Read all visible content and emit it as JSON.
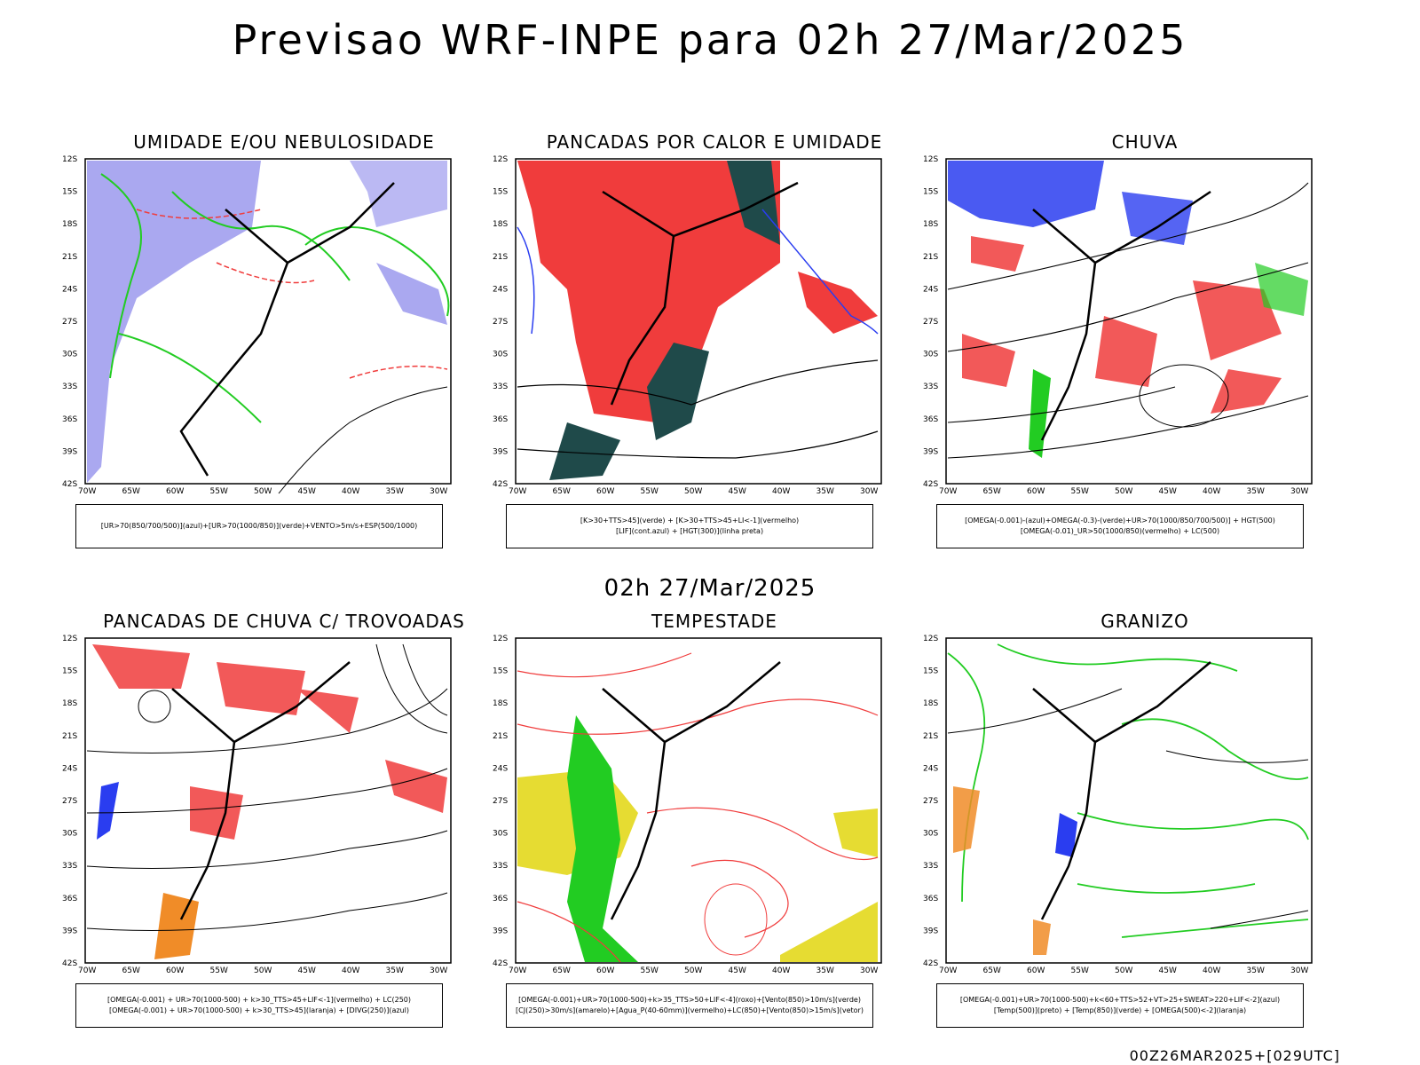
{
  "header": {
    "title": "Previsao WRF-INPE  para 02h 27/Mar/2025"
  },
  "middle": {
    "subtitle": "02h 27/Mar/2025"
  },
  "footer": {
    "run": "00Z26MAR2025+[029UTC]"
  },
  "axes": {
    "lat": [
      "12S",
      "15S",
      "18S",
      "21S",
      "24S",
      "27S",
      "30S",
      "33S",
      "36S",
      "39S",
      "42S"
    ],
    "lon": [
      "70W",
      "65W",
      "60W",
      "55W",
      "50W",
      "45W",
      "40W",
      "35W",
      "30W"
    ]
  },
  "colors": {
    "blue": "#2a3df0",
    "lavender": "#aaa8f0",
    "green": "#22cc22",
    "red": "#f03c3c",
    "darkteal": "#1f4a4a",
    "yellow": "#e6dc32",
    "orange": "#f08c28"
  },
  "panels": [
    {
      "title": "UMIDADE E/OU NEBULOSIDADE",
      "legend": [
        "[UR>70(850/700/500)](azul)+[UR>70(1000/850)](verde)+VENTO>5m/s+ESP(500/1000)"
      ]
    },
    {
      "title": "PANCADAS POR CALOR E UMIDADE",
      "legend": [
        "[K>30+TTS>45](verde) + [K>30+TTS>45+LI<-1](vermelho)",
        "[LIF](cont.azul) + [HGT(300)](linha preta)"
      ]
    },
    {
      "title": "CHUVA",
      "legend": [
        "[OMEGA(-0.001)-(azul)+OMEGA(-0.3)-(verde)+UR>70(1000/850/700/500)] + HGT(500)",
        "[OMEGA(-0.01)_UR>50(1000/850)(vermelho) + LC(500)"
      ]
    },
    {
      "title": "PANCADAS DE CHUVA C/ TROVOADAS",
      "legend": [
        "[OMEGA(-0.001) + UR>70(1000-500) + k>30_TTS>45+LIF<-1](vermelho) + LC(250)",
        "[OMEGA(-0.001) + UR>70(1000-500) + k>30_TTS>45](laranja) + [DIVG(250)](azul)"
      ]
    },
    {
      "title": "TEMPESTADE",
      "legend": [
        "[OMEGA(-0.001)+UR>70(1000-500)+k>35_TTS>50+LIF<-4](roxo)+[Vento(850)>10m/s](verde)",
        "[CJ(250)>30m/s](amarelo)+[Agua_P(40-60mm)](vermelho)+LC(850)+[Vento(850)>15m/s](vetor)"
      ]
    },
    {
      "title": "GRANIZO",
      "legend": [
        "[OMEGA(-0.001)+UR>70(1000-500)+k<60+TTS>52+VT>25+SWEAT>220+LIF<-2](azul)",
        "[Temp(500)](preto) + [Temp(850)](verde) + [OMEGA(500)<-2](laranja)"
      ]
    }
  ]
}
